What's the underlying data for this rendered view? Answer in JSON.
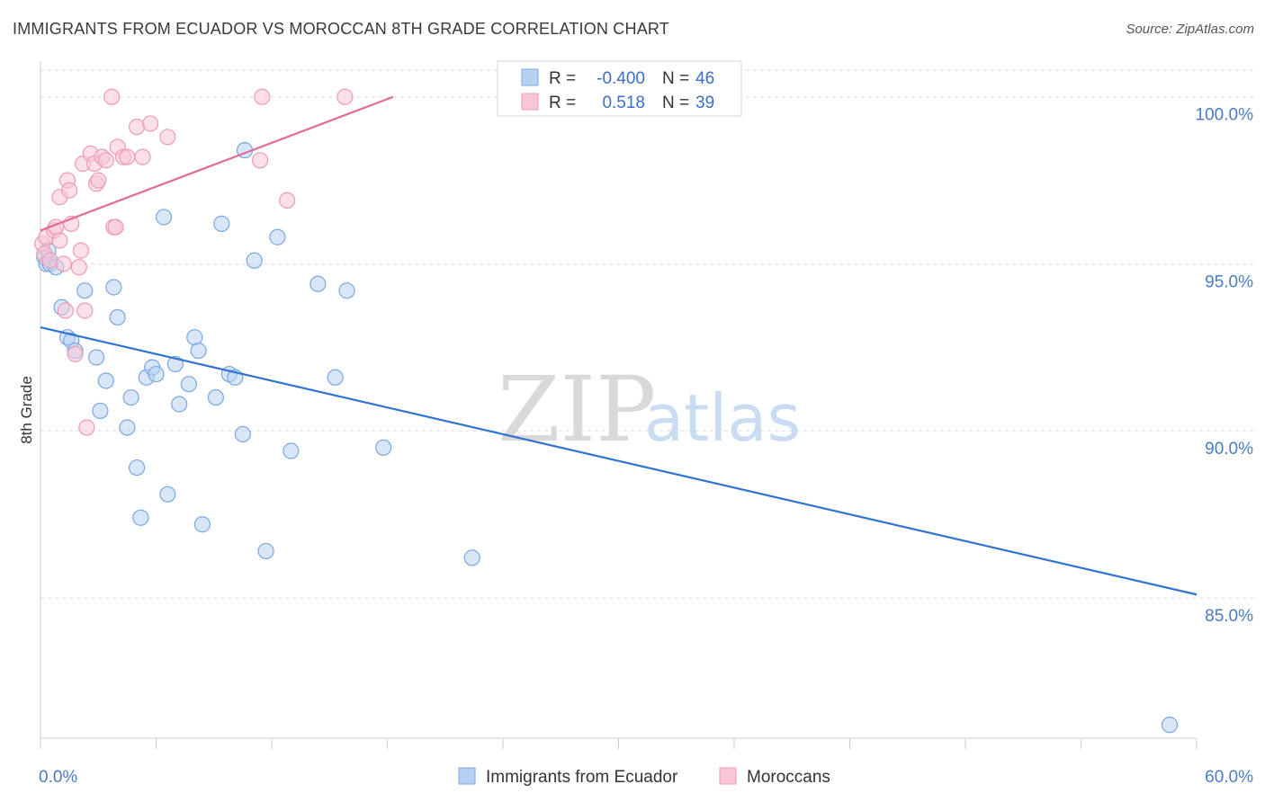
{
  "title": "IMMIGRANTS FROM ECUADOR VS MOROCCAN 8TH GRADE CORRELATION CHART",
  "source": "Source: ZipAtlas.com",
  "watermark": {
    "zip": "ZIP",
    "atlas": "atlas"
  },
  "colors": {
    "blue_fill": "#b8d1f3",
    "blue_stroke": "#7aa7e0",
    "blue_line": "#2f74d0",
    "pink_fill": "#f8c6d6",
    "pink_stroke": "#ee9ab6",
    "pink_line": "#e26c94",
    "tick_label": "#4a7cc4",
    "grid": "#dddddd"
  },
  "stats": {
    "r_label": "R =",
    "n_label": "N =",
    "blue": {
      "r": "-0.400",
      "n": "46"
    },
    "pink": {
      "r": "0.518",
      "n": "39"
    }
  },
  "legend": {
    "blue": "Immigrants from Ecuador",
    "pink": "Moroccans"
  },
  "chart_data": {
    "type": "scatter",
    "title": "IMMIGRANTS FROM ECUADOR VS MOROCCAN 8TH GRADE CORRELATION CHART",
    "xlabel": "",
    "ylabel": "8th Grade",
    "xlim": [
      0,
      60
    ],
    "ylim": [
      80.8,
      100.8
    ],
    "x_tick_labels": [
      "0.0%",
      "60.0%"
    ],
    "y_ticks": [
      100,
      95,
      90,
      85
    ],
    "y_tick_labels": [
      "100.0%",
      "95.0%",
      "90.0%",
      "85.0%"
    ],
    "grid": true,
    "legend_position": "bottom-center",
    "series": [
      {
        "name": "Immigrants from Ecuador",
        "color": "#7aa7e0",
        "trend": {
          "x": [
            0,
            60
          ],
          "y": [
            93.1,
            85.1
          ]
        },
        "points": [
          [
            0.2,
            95.2
          ],
          [
            0.3,
            95.0
          ],
          [
            0.4,
            95.4
          ],
          [
            0.5,
            95.0
          ],
          [
            0.8,
            94.9
          ],
          [
            1.1,
            93.7
          ],
          [
            1.4,
            92.8
          ],
          [
            1.6,
            92.7
          ],
          [
            1.8,
            92.4
          ],
          [
            2.3,
            94.2
          ],
          [
            2.9,
            92.2
          ],
          [
            3.1,
            90.6
          ],
          [
            3.4,
            91.5
          ],
          [
            3.8,
            94.3
          ],
          [
            4.0,
            93.4
          ],
          [
            4.5,
            90.1
          ],
          [
            4.7,
            91.0
          ],
          [
            5.0,
            88.9
          ],
          [
            5.2,
            87.4
          ],
          [
            5.5,
            91.6
          ],
          [
            5.8,
            91.9
          ],
          [
            6.0,
            91.7
          ],
          [
            6.4,
            96.4
          ],
          [
            6.6,
            88.1
          ],
          [
            7.0,
            92.0
          ],
          [
            7.2,
            90.8
          ],
          [
            7.7,
            91.4
          ],
          [
            8.0,
            92.8
          ],
          [
            8.2,
            92.4
          ],
          [
            8.4,
            87.2
          ],
          [
            9.1,
            91.0
          ],
          [
            9.4,
            96.2
          ],
          [
            9.8,
            91.7
          ],
          [
            10.1,
            91.6
          ],
          [
            10.5,
            89.9
          ],
          [
            11.1,
            95.1
          ],
          [
            11.7,
            86.4
          ],
          [
            12.3,
            95.8
          ],
          [
            13.0,
            89.4
          ],
          [
            14.4,
            94.4
          ],
          [
            15.3,
            91.6
          ],
          [
            15.9,
            94.2
          ],
          [
            17.8,
            89.5
          ],
          [
            22.4,
            86.2
          ],
          [
            58.6,
            81.2
          ],
          [
            10.6,
            98.4
          ]
        ]
      },
      {
        "name": "Moroccans",
        "color": "#ee9ab6",
        "trend": {
          "x": [
            0,
            18.3
          ],
          "y": [
            96.0,
            100.0
          ]
        },
        "points": [
          [
            0.1,
            95.6
          ],
          [
            0.2,
            95.3
          ],
          [
            0.3,
            95.8
          ],
          [
            0.5,
            95.1
          ],
          [
            0.7,
            96.0
          ],
          [
            0.8,
            96.1
          ],
          [
            1.0,
            95.7
          ],
          [
            1.0,
            97.0
          ],
          [
            1.2,
            95.0
          ],
          [
            1.3,
            93.6
          ],
          [
            1.4,
            97.5
          ],
          [
            1.5,
            97.2
          ],
          [
            1.6,
            96.2
          ],
          [
            1.8,
            92.3
          ],
          [
            2.0,
            94.9
          ],
          [
            2.1,
            95.4
          ],
          [
            2.2,
            98.0
          ],
          [
            2.3,
            93.6
          ],
          [
            2.4,
            90.1
          ],
          [
            2.6,
            98.3
          ],
          [
            2.8,
            98.0
          ],
          [
            2.9,
            97.4
          ],
          [
            3.0,
            97.5
          ],
          [
            3.2,
            98.2
          ],
          [
            3.4,
            98.1
          ],
          [
            3.7,
            100.0
          ],
          [
            3.8,
            96.1
          ],
          [
            3.9,
            96.1
          ],
          [
            4.0,
            98.5
          ],
          [
            4.3,
            98.2
          ],
          [
            4.5,
            98.2
          ],
          [
            5.0,
            99.1
          ],
          [
            5.3,
            98.2
          ],
          [
            5.7,
            99.2
          ],
          [
            6.6,
            98.8
          ],
          [
            11.4,
            98.1
          ],
          [
            11.5,
            100.0
          ],
          [
            12.8,
            96.9
          ],
          [
            15.8,
            100.0
          ]
        ]
      }
    ]
  }
}
